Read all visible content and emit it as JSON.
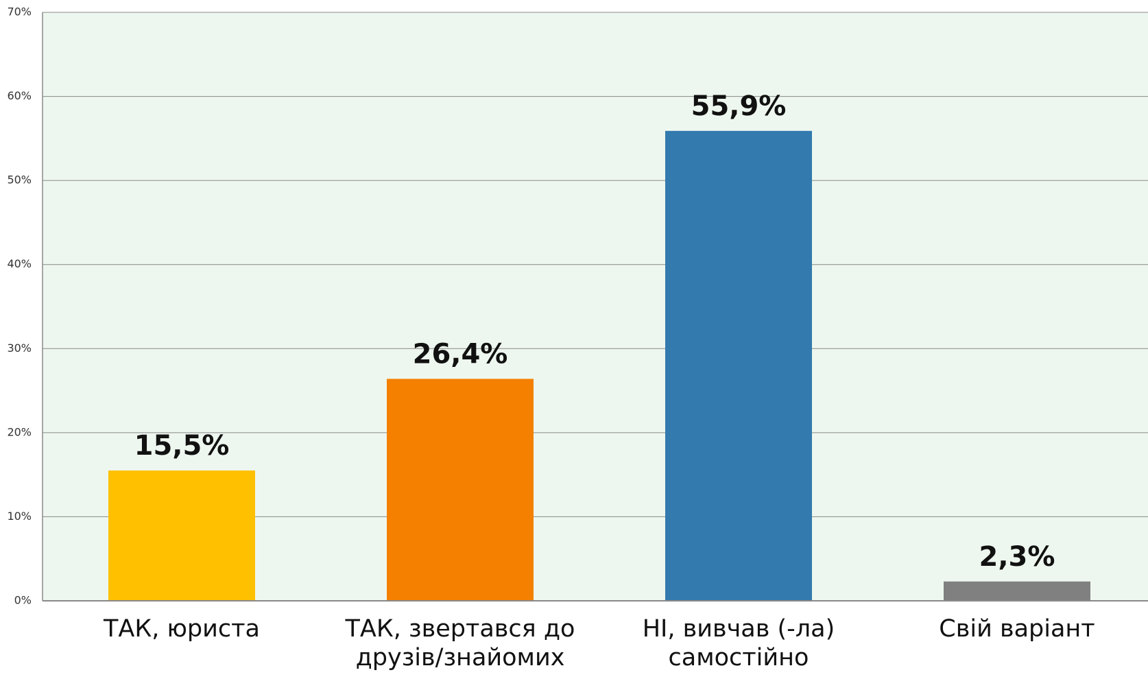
{
  "chart_data": {
    "type": "bar",
    "categories": [
      "ТАК, юриста",
      "ТАК, звертався до друзів/знайомих",
      "НІ, вивчав (-ла) самостійно",
      "Свій варіант"
    ],
    "values": [
      15.5,
      26.4,
      55.9,
      2.3
    ],
    "value_labels": [
      "15,5%",
      "26,4%",
      "55,9%",
      "2,3%"
    ],
    "colors": [
      "#ffc000",
      "#f58000",
      "#337aae",
      "#808080"
    ],
    "ylim": [
      0,
      70
    ],
    "yticks": [
      {
        "value": 0,
        "label": "0%"
      },
      {
        "value": 10,
        "label": "10%"
      },
      {
        "value": 20,
        "label": "20%"
      },
      {
        "value": 30,
        "label": "30%"
      },
      {
        "value": 40,
        "label": "40%"
      },
      {
        "value": 50,
        "label": "50%"
      },
      {
        "value": 60,
        "label": "60%"
      },
      {
        "value": 70,
        "label": "70%"
      }
    ],
    "grid": true
  }
}
